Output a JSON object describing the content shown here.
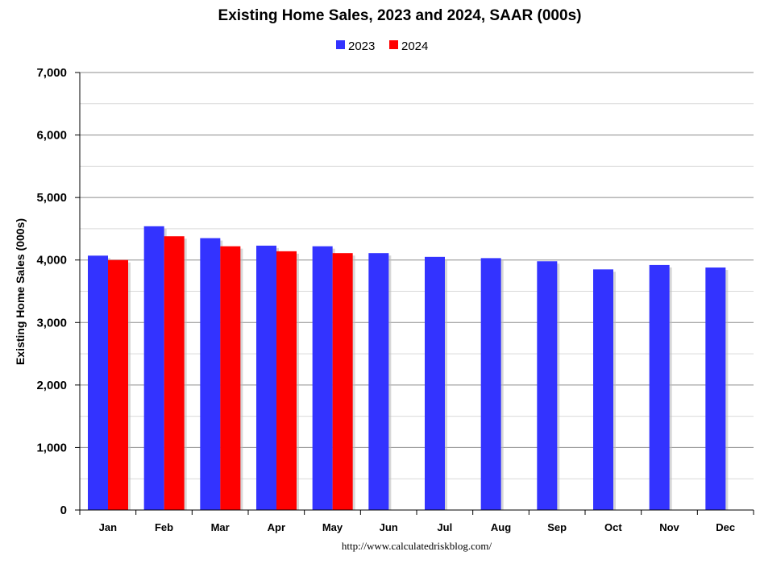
{
  "chart_data": {
    "type": "bar",
    "title": "Existing Home Sales,  2023 and 2024, SAAR (000s)",
    "ylabel": "Existing Home Sales (000s)",
    "xlabel": "",
    "categories": [
      "Jan",
      "Feb",
      "Mar",
      "Apr",
      "May",
      "Jun",
      "Jul",
      "Aug",
      "Sep",
      "Oct",
      "Nov",
      "Dec"
    ],
    "series": [
      {
        "name": "2023",
        "color": "#3333ff",
        "values": [
          4070,
          4540,
          4350,
          4230,
          4220,
          4110,
          4050,
          4030,
          3980,
          3850,
          3920,
          3880
        ]
      },
      {
        "name": "2024",
        "color": "#ff0000",
        "values": [
          4000,
          4380,
          4220,
          4140,
          4110,
          null,
          null,
          null,
          null,
          null,
          null,
          null
        ]
      }
    ],
    "ylim": [
      0,
      7000
    ],
    "yticks": [
      0,
      1000,
      2000,
      3000,
      4000,
      5000,
      6000,
      7000
    ],
    "ytick_labels": [
      "0",
      "1,000",
      "2,000",
      "3,000",
      "4,000",
      "5,000",
      "6,000",
      "7,000"
    ],
    "grid": true,
    "legend_position": "top-center",
    "source_note": "http://www.calculatedriskblog.com/"
  }
}
